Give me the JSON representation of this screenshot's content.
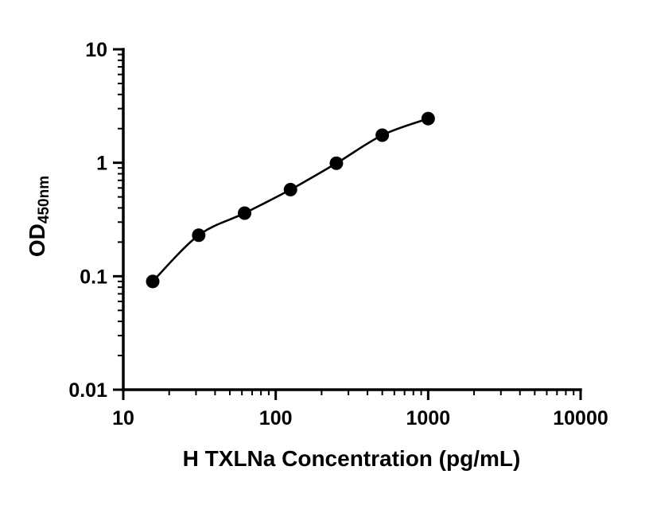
{
  "chart_data": {
    "type": "scatter",
    "title": "",
    "xlabel": "H TXLNa Concentration (pg/mL)",
    "ylabel_main": "OD",
    "ylabel_sub": "450nm",
    "xscale": "log",
    "yscale": "log",
    "xlim": [
      10,
      10000
    ],
    "ylim": [
      0.01,
      10
    ],
    "x": [
      15.6,
      31.25,
      62.5,
      125,
      250,
      500,
      1000
    ],
    "y": [
      0.09,
      0.23,
      0.36,
      0.58,
      0.99,
      1.75,
      2.45
    ],
    "x_ticks": [
      10,
      100,
      1000,
      10000
    ],
    "x_tick_labels": [
      "10",
      "100",
      "1000",
      "10000"
    ],
    "y_ticks": [
      0.01,
      0.1,
      1,
      10
    ],
    "y_tick_labels": [
      "0.01",
      "0.1",
      "1",
      "10"
    ],
    "grid": false,
    "legend": null,
    "line_color": "#000000",
    "marker_color": "#000000",
    "background_color": "#ffffff"
  }
}
